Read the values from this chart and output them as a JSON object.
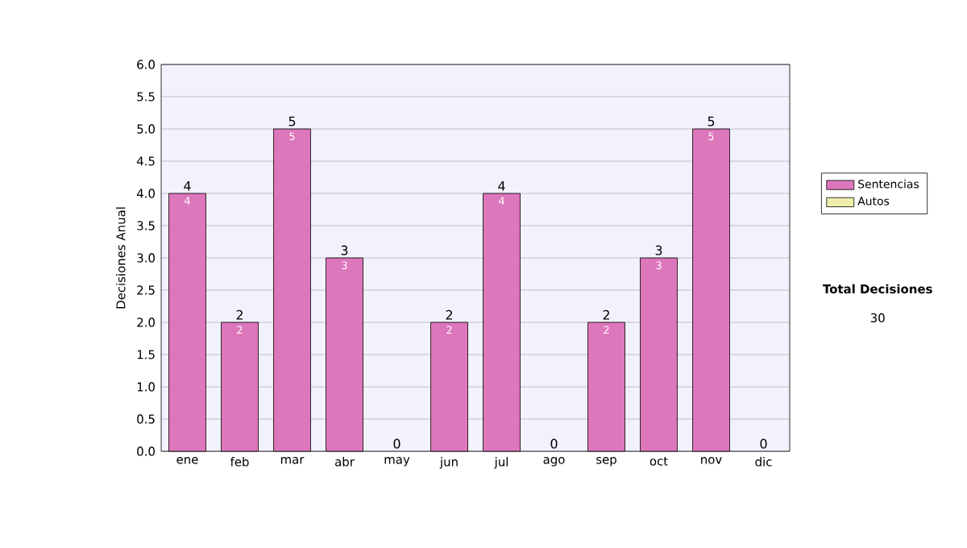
{
  "chart_data": {
    "type": "bar",
    "stacked": true,
    "ylabel": "Decisiones Anual",
    "categories": [
      "ene",
      "feb",
      "mar",
      "abr",
      "may",
      "jun",
      "jul",
      "ago",
      "sep",
      "oct",
      "nov",
      "dic"
    ],
    "series": [
      {
        "name": "Sentencias",
        "color": "#dd77bb",
        "values": [
          4,
          2,
          5,
          3,
          0,
          2,
          4,
          0,
          2,
          3,
          5,
          0
        ],
        "value_labels": [
          "4",
          "2",
          "5",
          "3",
          null,
          "2",
          "4",
          null,
          "2",
          "3",
          "5",
          null
        ]
      },
      {
        "name": "Autos",
        "color": "#eeeeaa",
        "values": [
          0,
          0,
          0,
          0,
          0,
          0,
          0,
          0,
          0,
          0,
          0,
          0
        ]
      }
    ],
    "totals": [
      "4",
      "2",
      "5",
      "3",
      "0",
      "2",
      "4",
      "0",
      "2",
      "3",
      "5",
      "0"
    ],
    "ylim": [
      0,
      6
    ],
    "yticks": [
      {
        "value": 0,
        "label": "0.0"
      },
      {
        "value": 0.5,
        "label": "0.5"
      },
      {
        "value": 1,
        "label": "1.0"
      },
      {
        "value": 1.5,
        "label": "1.5"
      },
      {
        "value": 2,
        "label": "2.0"
      },
      {
        "value": 2.5,
        "label": "2.5"
      },
      {
        "value": 3,
        "label": "3.0"
      },
      {
        "value": 3.5,
        "label": "3.5"
      },
      {
        "value": 4,
        "label": "4.0"
      },
      {
        "value": 4.5,
        "label": "4.5"
      },
      {
        "value": 5,
        "label": "5.0"
      },
      {
        "value": 5.5,
        "label": "5.5"
      },
      {
        "value": 6,
        "label": "6.0"
      }
    ],
    "grid": "y",
    "legend": "right",
    "annotations": [
      "Total Decisiones",
      "30"
    ]
  }
}
